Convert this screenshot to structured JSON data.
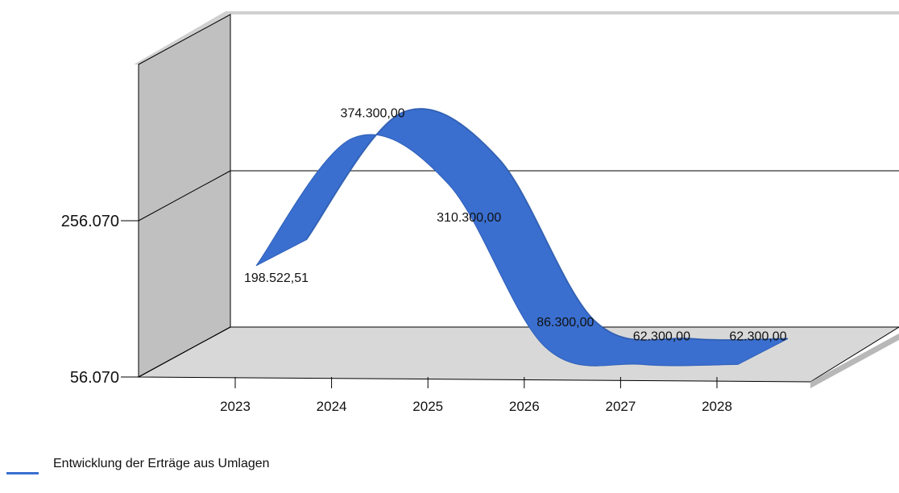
{
  "chart_data": {
    "type": "line",
    "style": "3d-ribbon",
    "categories": [
      "2023",
      "2024",
      "2025",
      "2026",
      "2027",
      "2028"
    ],
    "series": [
      {
        "name": "Entwicklung der Erträge aus Umlagen",
        "values": [
          198522.51,
          374300.0,
          310300.0,
          86300.0,
          62300.0,
          62300.0
        ],
        "labels": [
          "198.522,51",
          "374.300,00",
          "310.300,00",
          "86.300,00",
          "62.300,00",
          "62.300,00"
        ],
        "color": "#3a6fd0"
      }
    ],
    "y_ticks": [
      "256.070",
      "56.070"
    ],
    "y_tick_values": [
      256070,
      56070
    ],
    "ylim": [
      56070,
      456070
    ],
    "grid": true,
    "legend_position": "bottom-left",
    "wall_color": "#c0c0c0",
    "floor_color": "#d8d8d8"
  }
}
